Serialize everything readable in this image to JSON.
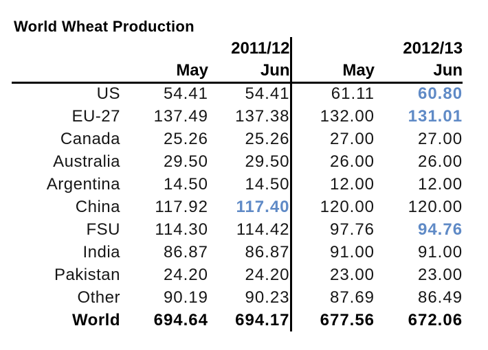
{
  "title": "World Wheat Production",
  "colors": {
    "highlight_blue": "#5f8ac6",
    "text_black": "#000000",
    "background": "#ffffff"
  },
  "table": {
    "group_headers": [
      "2011/12",
      "2012/13"
    ],
    "sub_headers": [
      "May",
      "Jun",
      "May",
      "Jun"
    ],
    "rows": [
      {
        "label": "US",
        "values": [
          "54.41",
          "54.41",
          "61.11",
          "60.80"
        ],
        "highlight": [
          3
        ],
        "bold": false
      },
      {
        "label": "EU-27",
        "values": [
          "137.49",
          "137.38",
          "132.00",
          "131.01"
        ],
        "highlight": [
          3
        ],
        "bold": false
      },
      {
        "label": "Canada",
        "values": [
          "25.26",
          "25.26",
          "27.00",
          "27.00"
        ],
        "highlight": [],
        "bold": false
      },
      {
        "label": "Australia",
        "values": [
          "29.50",
          "29.50",
          "26.00",
          "26.00"
        ],
        "highlight": [],
        "bold": false
      },
      {
        "label": "Argentina",
        "values": [
          "14.50",
          "14.50",
          "12.00",
          "12.00"
        ],
        "highlight": [],
        "bold": false
      },
      {
        "label": "China",
        "values": [
          "117.92",
          "117.40",
          "120.00",
          "120.00"
        ],
        "highlight": [
          1
        ],
        "bold": false
      },
      {
        "label": "FSU",
        "values": [
          "114.30",
          "114.42",
          "97.76",
          "94.76"
        ],
        "highlight": [
          3
        ],
        "bold": false
      },
      {
        "label": "India",
        "values": [
          "86.87",
          "86.87",
          "91.00",
          "91.00"
        ],
        "highlight": [],
        "bold": false
      },
      {
        "label": "Pakistan",
        "values": [
          "24.20",
          "24.20",
          "23.00",
          "23.00"
        ],
        "highlight": [],
        "bold": false
      },
      {
        "label": "Other",
        "values": [
          "90.19",
          "90.23",
          "87.69",
          "86.49"
        ],
        "highlight": [],
        "bold": false
      },
      {
        "label": "World",
        "values": [
          "694.64",
          "694.17",
          "677.56",
          "672.06"
        ],
        "highlight": [],
        "bold": true
      }
    ]
  }
}
